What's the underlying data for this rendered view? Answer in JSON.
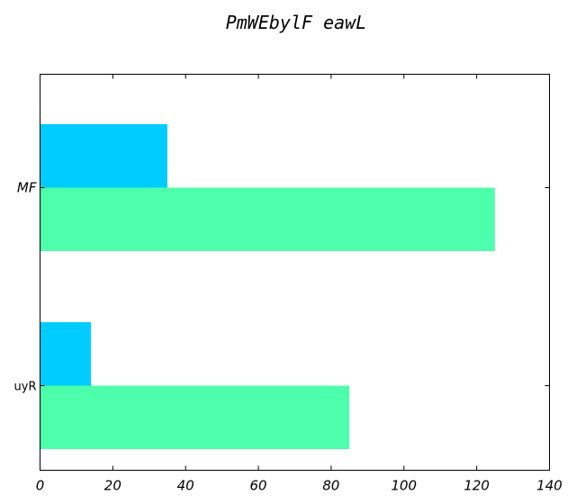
{
  "chart_data": {
    "type": "bar",
    "orientation": "horizontal",
    "title": "PmWEbylF eawL",
    "xlabel": "",
    "ylabel": "",
    "categories": [
      "uyR",
      "MF"
    ],
    "series": [
      {
        "values": [
          85,
          125
        ],
        "color": "#4dffaa"
      },
      {
        "values": [
          14,
          35
        ],
        "color": "#00ccff"
      }
    ],
    "xlim": [
      0,
      140
    ],
    "xticks": [
      0,
      20,
      40,
      60,
      80,
      100,
      120,
      140
    ],
    "grid": false,
    "legend": "none"
  }
}
